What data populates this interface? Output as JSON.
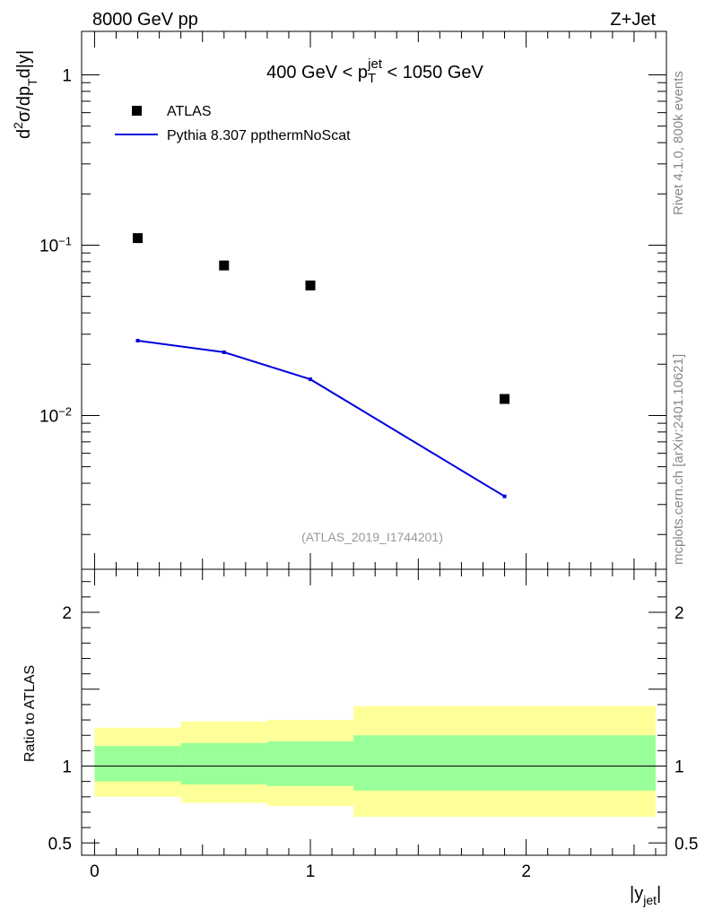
{
  "header": {
    "left_label": "8000 GeV pp",
    "right_label": "Z+Jet"
  },
  "side_labels": {
    "rivet": "Rivet 4.1.0,  800k events",
    "source": "mcplots.cern.ch [arXiv:2401.10621]"
  },
  "chart_data": [
    {
      "type": "scatter",
      "panel": "main",
      "title": {
        "prefix": "400 GeV < p",
        "sub": "T",
        "sup": "jet",
        "suffix": " < 1050 GeV"
      },
      "ylabel": {
        "part1": "d",
        "sup1": "2",
        "part2": "σ/dp",
        "sub1": "T",
        "part3": "d|y|"
      },
      "yscale": "log",
      "ylim": [
        0.00125,
        1.8
      ],
      "xlim": [
        -0.06,
        2.65
      ],
      "y_major_ticks": [
        {
          "value": 1,
          "label": "1"
        },
        {
          "value": 0.1,
          "label_base": "10",
          "label_exp": "−1"
        },
        {
          "value": 0.01,
          "label_base": "10",
          "label_exp": "−2"
        }
      ],
      "watermark": "(ATLAS_2019_I1744201)",
      "legend": {
        "position": "top-left",
        "entries": [
          "ATLAS",
          "Pythia 8.307 ppthermNoScat"
        ]
      },
      "series": [
        {
          "name": "ATLAS",
          "kind": "markers",
          "color": "#000000",
          "x": [
            0.2,
            0.6,
            1.0,
            1.9
          ],
          "y": [
            0.11,
            0.076,
            0.058,
            0.0125
          ]
        },
        {
          "name": "Pythia 8.307 ppthermNoScat",
          "kind": "line",
          "color": "#0000dd",
          "x": [
            0.2,
            0.6,
            1.0,
            1.9
          ],
          "y": [
            0.0275,
            0.0235,
            0.0163,
            0.00335
          ]
        }
      ]
    },
    {
      "type": "area",
      "panel": "ratio",
      "ylabel": "Ratio to ATLAS",
      "xlabel": {
        "main": "|y",
        "sub": "jet",
        "end": "|"
      },
      "ylim": [
        0.42,
        2.28
      ],
      "xlim": [
        -0.06,
        2.65
      ],
      "y_tick_labels": [
        {
          "value": 2,
          "label": "2"
        },
        {
          "value": 1,
          "label": "1"
        },
        {
          "value": 0.5,
          "label": "0.5"
        }
      ],
      "x_tick_labels": [
        {
          "value": 0,
          "label": "0"
        },
        {
          "value": 1,
          "label": "1"
        },
        {
          "value": 2,
          "label": "2"
        }
      ],
      "reference_line": 1,
      "bins": [
        {
          "x0": 0.0,
          "x1": 0.4,
          "yellow": [
            0.8,
            1.25
          ],
          "green": [
            0.9,
            1.13
          ]
        },
        {
          "x0": 0.4,
          "x1": 0.8,
          "yellow": [
            0.76,
            1.29
          ],
          "green": [
            0.88,
            1.15
          ]
        },
        {
          "x0": 0.8,
          "x1": 1.2,
          "yellow": [
            0.74,
            1.3
          ],
          "green": [
            0.87,
            1.16
          ]
        },
        {
          "x0": 1.2,
          "x1": 2.6,
          "yellow": [
            0.67,
            1.39
          ],
          "green": [
            0.84,
            1.2
          ]
        }
      ],
      "colors": {
        "yellow": "#ffff99",
        "green": "#99ff99"
      }
    }
  ]
}
